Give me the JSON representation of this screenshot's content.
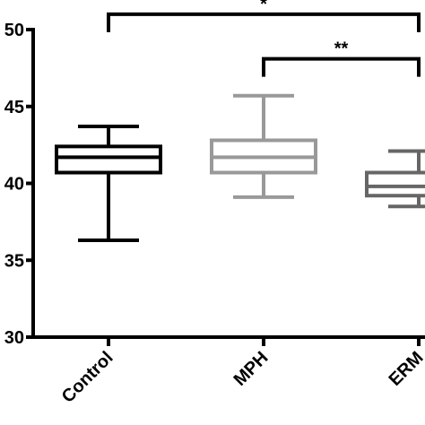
{
  "chart_data": {
    "type": "boxplot",
    "title": "",
    "xlabel": "",
    "ylabel": "",
    "categories": [
      "Control",
      "MPH",
      "ERM"
    ],
    "ylim": [
      30,
      50
    ],
    "y_ticks": [
      30,
      35,
      40,
      45,
      50
    ],
    "y_tick_labels": [
      "30",
      "35",
      "40",
      "45",
      "50"
    ],
    "grid": false,
    "legend": "none",
    "boxes": [
      {
        "category": "Control",
        "min": 36.3,
        "q1": 40.7,
        "median": 41.7,
        "q3": 42.4,
        "max": 43.7,
        "color": "#000000"
      },
      {
        "category": "MPH",
        "min": 39.1,
        "q1": 40.7,
        "median": 41.7,
        "q3": 42.8,
        "max": 45.7,
        "color": "#999999"
      },
      {
        "category": "ERM",
        "min": 38.5,
        "q1": 39.2,
        "median": 39.8,
        "q3": 40.7,
        "max": 42.1,
        "color": "#666666"
      }
    ],
    "significance": [
      {
        "from": "Control",
        "to": "ERM",
        "label": "*",
        "y": 51.0
      },
      {
        "from": "MPH",
        "to": "ERM",
        "label": "**",
        "y": 48.1
      }
    ]
  }
}
